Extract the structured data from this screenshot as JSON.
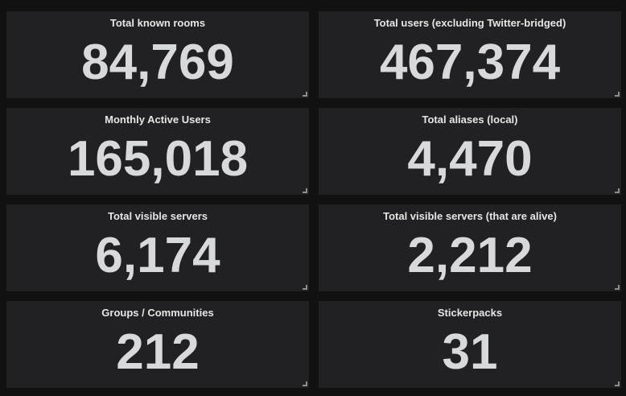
{
  "panels": [
    {
      "title": "Total known rooms",
      "value": "84,769"
    },
    {
      "title": "Total users (excluding Twitter-bridged)",
      "value": "467,374"
    },
    {
      "title": "Monthly Active Users",
      "value": "165,018"
    },
    {
      "title": "Total aliases (local)",
      "value": "4,470"
    },
    {
      "title": "Total visible servers",
      "value": "6,174"
    },
    {
      "title": "Total visible servers (that are alive)",
      "value": "2,212"
    },
    {
      "title": "Groups / Communities",
      "value": "212"
    },
    {
      "title": "Stickerpacks",
      "value": "31"
    }
  ],
  "colors": {
    "background": "#111111",
    "panel": "#212124",
    "text": "#d8d9da"
  }
}
